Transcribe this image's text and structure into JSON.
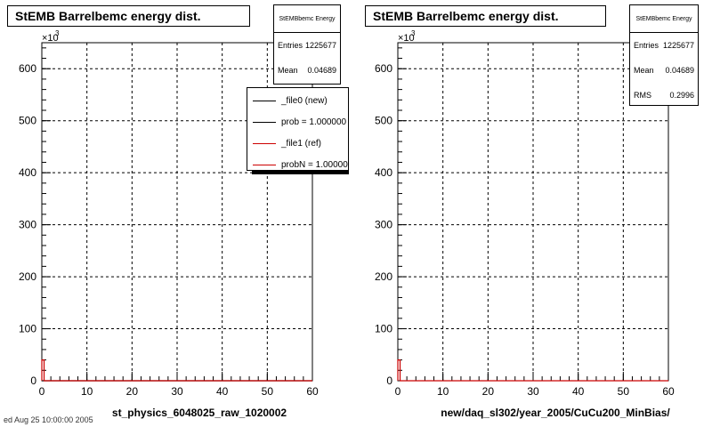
{
  "chart_data": [
    {
      "type": "bar",
      "title": "StEMB Barrelbemc energy dist.",
      "xlabel": "st_physics_6048025_raw_1020002",
      "ylabel": "",
      "y_multiplier_label": "×10",
      "y_multiplier_exp": "3",
      "xlim": [
        0,
        60
      ],
      "ylim": [
        0,
        650
      ],
      "x_ticks": [
        "0",
        "10",
        "20",
        "30",
        "40",
        "50",
        "60"
      ],
      "y_ticks": [
        "0",
        "100",
        "200",
        "300",
        "400",
        "500",
        "600"
      ],
      "grid": true,
      "series": [
        {
          "name": "_file0 (new)",
          "color": "#000000",
          "x": [
            0
          ],
          "values": [
            0
          ]
        },
        {
          "name": "_file1 (ref)",
          "color": "#cc0000",
          "x": [
            0,
            0.5
          ],
          "values": [
            40,
            0
          ]
        }
      ],
      "stats": {
        "name": "StEMBbemc Energy",
        "entries_label": "Entries",
        "entries": "1225677",
        "mean_label": "Mean",
        "mean": "0.04689"
      },
      "legend": {
        "placement": "top-right",
        "entries": [
          "_file0 (new)",
          "prob = 1.000000",
          "_file1 (ref)",
          "probN = 1.000000"
        ],
        "colors": [
          "#000000",
          "#000000",
          "#cc0000",
          "#cc0000"
        ]
      }
    },
    {
      "type": "bar",
      "title": "StEMB Barrelbemc energy dist.",
      "xlabel": "new/daq_sl302/year_2005/CuCu200_MinBias/",
      "ylabel": "",
      "y_multiplier_label": "×10",
      "y_multiplier_exp": "3",
      "xlim": [
        0,
        60
      ],
      "ylim": [
        0,
        650
      ],
      "x_ticks": [
        "0",
        "10",
        "20",
        "30",
        "40",
        "50",
        "60"
      ],
      "y_ticks": [
        "0",
        "100",
        "200",
        "300",
        "400",
        "500",
        "600"
      ],
      "grid": true,
      "series": [
        {
          "name": "",
          "color": "#cc0000",
          "x": [
            0,
            0.5
          ],
          "values": [
            40,
            0
          ]
        }
      ],
      "stats": {
        "name": "StEMBbemc Energy",
        "entries_label": "Entries",
        "entries": "1225677",
        "mean_label": "Mean",
        "mean": "0.04689",
        "rms_label": "RMS",
        "rms": "0.2996"
      }
    }
  ],
  "footer": "ed Aug 25 10:00:00 2005"
}
